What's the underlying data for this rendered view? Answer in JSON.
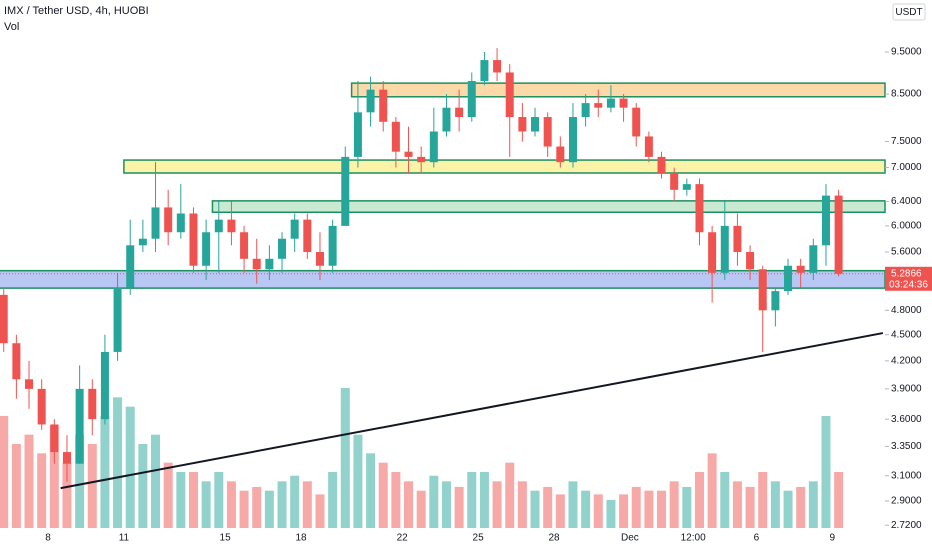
{
  "chart_data": {
    "type": "candlestick",
    "title": "IMX / Tether USD, 4h, HUOBI",
    "volume_label": "Vol",
    "currency": "USDT",
    "log_scale": true,
    "up_color": "#26a69a",
    "down_color": "#ef5350",
    "categories": [
      null,
      null,
      null,
      null,
      "8",
      null,
      null,
      null,
      null,
      null,
      "11",
      null,
      null,
      null,
      null,
      null,
      null,
      null,
      "15",
      null,
      null,
      null,
      null,
      null,
      "18",
      null,
      null,
      null,
      null,
      null,
      null,
      null,
      "22",
      null,
      null,
      null,
      null,
      null,
      "25",
      null,
      null,
      null,
      null,
      null,
      "28",
      null,
      null,
      null,
      null,
      null,
      "Dec",
      null,
      null,
      null,
      null,
      "12:00",
      null,
      null,
      null,
      null,
      "6",
      null,
      null,
      null,
      null,
      null,
      "9"
    ],
    "open": [
      5.0,
      4.4,
      4.0,
      3.9,
      3.55,
      3.3,
      3.2,
      3.9,
      3.6,
      4.3,
      5.1,
      5.7,
      5.8,
      6.3,
      5.9,
      6.2,
      5.4,
      5.9,
      6.1,
      5.9,
      5.5,
      5.35,
      5.5,
      5.8,
      6.1,
      5.6,
      5.4,
      6.0,
      7.2,
      8.1,
      8.6,
      7.9,
      7.3,
      7.2,
      7.1,
      7.7,
      8.2,
      8.0,
      8.8,
      9.3,
      9.0,
      8.0,
      7.7,
      8.0,
      7.4,
      7.1,
      8.0,
      8.3,
      8.2,
      8.4,
      8.2,
      7.6,
      7.2,
      6.9,
      6.6,
      6.7,
      5.9,
      5.3,
      6.0,
      5.6,
      5.35,
      4.8,
      5.05,
      5.4,
      5.3,
      5.7,
      6.5
    ],
    "high": [
      5.1,
      4.5,
      4.2,
      4.0,
      3.6,
      3.45,
      4.15,
      4.0,
      4.5,
      5.3,
      6.1,
      6.1,
      7.1,
      6.6,
      6.7,
      6.3,
      6.1,
      6.4,
      6.4,
      6.0,
      5.8,
      5.7,
      5.9,
      6.2,
      6.2,
      5.9,
      6.1,
      7.4,
      8.8,
      8.9,
      8.8,
      8.0,
      7.8,
      7.4,
      8.2,
      8.5,
      8.6,
      9.0,
      9.5,
      9.6,
      9.2,
      8.3,
      8.2,
      8.1,
      7.6,
      8.3,
      8.5,
      8.6,
      8.7,
      8.5,
      8.3,
      7.7,
      7.3,
      7.0,
      6.8,
      6.8,
      6.0,
      6.4,
      6.2,
      5.7,
      5.4,
      5.1,
      5.5,
      5.5,
      5.8,
      6.7,
      6.6
    ],
    "low": [
      4.3,
      3.8,
      3.7,
      3.5,
      3.2,
      3.05,
      3.2,
      3.45,
      3.55,
      4.2,
      5.0,
      5.6,
      5.6,
      5.7,
      5.8,
      5.3,
      5.2,
      5.3,
      5.7,
      5.3,
      5.15,
      5.2,
      5.3,
      5.6,
      5.5,
      5.2,
      5.3,
      6.0,
      7.0,
      7.8,
      7.7,
      7.0,
      6.9,
      6.9,
      7.0,
      7.6,
      7.7,
      7.9,
      8.7,
      8.8,
      7.2,
      7.5,
      7.6,
      7.2,
      7.0,
      7.0,
      7.8,
      8.0,
      8.1,
      7.9,
      7.4,
      7.1,
      6.8,
      6.4,
      6.5,
      5.7,
      4.9,
      5.2,
      5.4,
      5.2,
      4.3,
      4.6,
      5.0,
      5.1,
      5.2,
      5.4,
      5.25
    ],
    "close": [
      4.4,
      4.0,
      3.9,
      3.55,
      3.3,
      3.2,
      3.9,
      3.6,
      4.3,
      5.1,
      5.7,
      5.8,
      6.3,
      5.9,
      6.2,
      5.4,
      5.9,
      6.1,
      5.9,
      5.5,
      5.35,
      5.5,
      5.8,
      6.1,
      5.6,
      5.4,
      6.0,
      7.2,
      8.1,
      8.6,
      7.9,
      7.3,
      7.2,
      7.1,
      7.7,
      8.2,
      8.0,
      8.8,
      9.3,
      9.0,
      8.0,
      7.7,
      8.0,
      7.4,
      7.1,
      8.0,
      8.3,
      8.2,
      8.4,
      8.2,
      7.6,
      7.2,
      6.9,
      6.6,
      6.7,
      5.9,
      5.3,
      6.0,
      5.6,
      5.35,
      4.8,
      5.05,
      5.4,
      5.3,
      5.7,
      6.5,
      5.2866
    ],
    "volume": [
      60,
      45,
      50,
      40,
      55,
      35,
      50,
      45,
      60,
      70,
      65,
      45,
      50,
      35,
      30,
      30,
      25,
      30,
      25,
      20,
      22,
      20,
      25,
      28,
      25,
      18,
      30,
      75,
      50,
      40,
      35,
      30,
      25,
      20,
      28,
      25,
      22,
      30,
      30,
      25,
      35,
      25,
      20,
      22,
      18,
      25,
      20,
      18,
      15,
      18,
      22,
      20,
      20,
      25,
      22,
      30,
      40,
      30,
      25,
      22,
      30,
      25,
      20,
      22,
      25,
      60,
      30
    ],
    "ylim": [
      2.7,
      10.9
    ],
    "yticks": [
      {
        "value": 2.72,
        "label": "2.7200"
      },
      {
        "value": 2.9,
        "label": "2.9000"
      },
      {
        "value": 3.1,
        "label": "3.1000"
      },
      {
        "value": 3.35,
        "label": "3.3500"
      },
      {
        "value": 3.6,
        "label": "3.6000"
      },
      {
        "value": 3.9,
        "label": "3.9000"
      },
      {
        "value": 4.2,
        "label": "4.2000"
      },
      {
        "value": 4.5,
        "label": "4.5000"
      },
      {
        "value": 4.8,
        "label": "4.8000"
      },
      {
        "value": 5.6,
        "label": "5.6000"
      },
      {
        "value": 6,
        "label": "6.0000"
      },
      {
        "value": 6.4,
        "label": "6.4000"
      },
      {
        "value": 7,
        "label": "7.0000"
      },
      {
        "value": 7.5,
        "label": "7.5000"
      },
      {
        "value": 8.5,
        "label": "8.5000"
      },
      {
        "value": 9.5,
        "label": "9.5000"
      }
    ],
    "zones": [
      {
        "low": 8.44,
        "high": 8.75,
        "from": 28,
        "color": "#fcd9a8"
      },
      {
        "low": 6.9,
        "high": 7.14,
        "from": 10,
        "color": "#fbf3a8"
      },
      {
        "low": 6.22,
        "high": 6.41,
        "from": 17,
        "color": "#c8e9d2"
      },
      {
        "low": 5.09,
        "high": 5.33,
        "from": 0,
        "color": "#b9c7f5"
      }
    ],
    "trendline": {
      "x": [
        5,
        70
      ],
      "y": [
        3.0,
        4.52
      ]
    },
    "last_price": 5.2866,
    "countdown": "03:24:36"
  }
}
